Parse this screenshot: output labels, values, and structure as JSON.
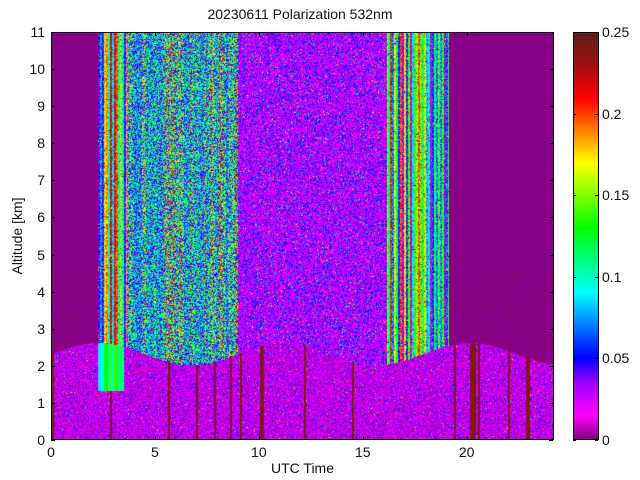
{
  "chart_data": {
    "type": "heatmap",
    "title": "20230611 Polarization 532nm",
    "xlabel": "UTC Time",
    "ylabel": "Altitude [km]",
    "xlim": [
      0,
      24.2
    ],
    "ylim": [
      0,
      11
    ],
    "x_ticks": [
      0,
      5,
      10,
      15,
      20
    ],
    "x_tick_labels": [
      "0",
      "5",
      "10",
      "15",
      "20"
    ],
    "y_ticks": [
      0,
      1,
      2,
      3,
      4,
      5,
      6,
      7,
      8,
      9,
      10,
      11
    ],
    "y_tick_labels": [
      "0",
      "1",
      "2",
      "3",
      "4",
      "5",
      "6",
      "7",
      "8",
      "9",
      "10",
      "11"
    ],
    "colorbar": {
      "clim": [
        0,
        0.25
      ],
      "ticks": [
        0,
        0.05,
        0.1,
        0.15,
        0.2,
        0.25
      ],
      "tick_labels": [
        "0",
        "0.05",
        "0.1",
        "0.15",
        "0.2",
        "0.25"
      ],
      "colormap": [
        [
          0.0,
          "#880088"
        ],
        [
          0.015,
          "#ff00ff"
        ],
        [
          0.035,
          "#9900ff"
        ],
        [
          0.05,
          "#0000ff"
        ],
        [
          0.09,
          "#00ffff"
        ],
        [
          0.13,
          "#00ff00"
        ],
        [
          0.17,
          "#ffff00"
        ],
        [
          0.19,
          "#ff8000"
        ],
        [
          0.21,
          "#ff0000"
        ],
        [
          0.23,
          "#a01010"
        ],
        [
          0.25,
          "#602018"
        ]
      ]
    },
    "regions": [
      {
        "time_range": [
          0,
          2.2
        ],
        "alt_range": [
          2.5,
          11
        ],
        "typical_value": 0.0,
        "pattern": "uniform, sparse high dots 2-4.5 km"
      },
      {
        "time_range": [
          2.2,
          3.6
        ],
        "alt_range": [
          1.5,
          11
        ],
        "typical_value": 0.11,
        "pattern": "vertical stripes"
      },
      {
        "time_range": [
          3.6,
          9
        ],
        "alt_range": [
          2.5,
          11
        ],
        "typical_value": 0.09,
        "pattern": "noisy, high variance"
      },
      {
        "time_range": [
          9,
          16
        ],
        "alt_range": [
          2.5,
          11
        ],
        "typical_value": 0.04,
        "pattern": "noisy"
      },
      {
        "time_range": [
          16,
          19.2
        ],
        "alt_range": [
          2.5,
          11
        ],
        "typical_value": 0.1,
        "pattern": "vertical stripes"
      },
      {
        "time_range": [
          19.2,
          24.2
        ],
        "alt_range": [
          2.5,
          11
        ],
        "typical_value": 0.0,
        "pattern": "uniform, sparse high dots 2-4 km"
      },
      {
        "time_range": [
          0,
          24.2
        ],
        "alt_range": [
          0,
          2.5
        ],
        "typical_value": 0.03,
        "pattern": "boundary layer, noisy"
      }
    ]
  }
}
